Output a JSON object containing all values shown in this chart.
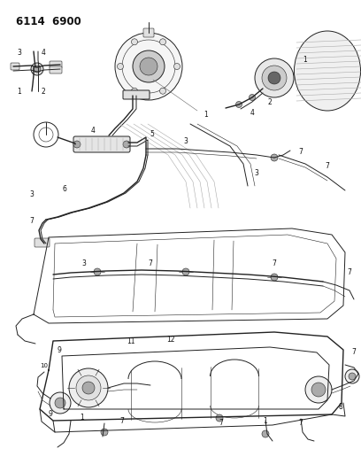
{
  "title": "6114  6900",
  "bg_color": "#ffffff",
  "lc": "#222222",
  "fig_width": 4.08,
  "fig_height": 5.33,
  "dpi": 100,
  "gray1": "#aaaaaa",
  "gray2": "#666666",
  "gray3": "#444444",
  "gray_fill": "#cccccc",
  "light_gray": "#e0e0e0"
}
